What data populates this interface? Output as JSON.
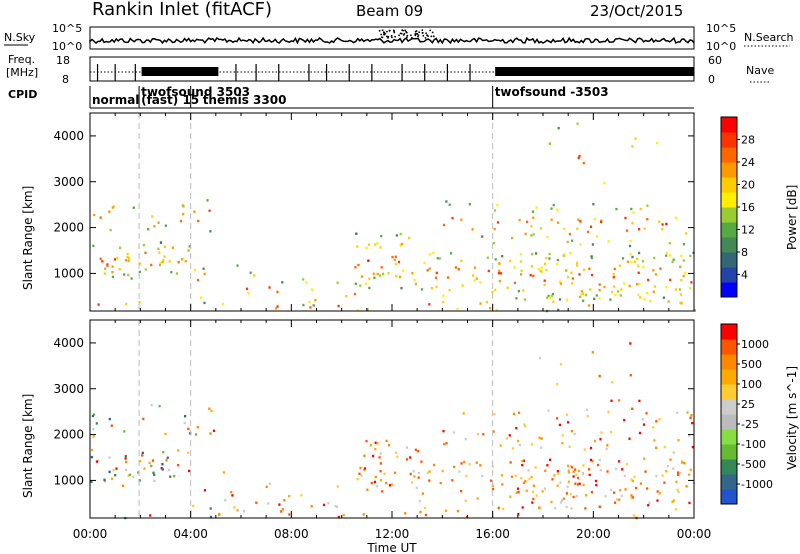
{
  "header": {
    "station": "Rankin Inlet (fitACF)",
    "beam": "Beam 09",
    "date": "23/Oct/2015"
  },
  "strip": {
    "nsky_label": "N.Sky",
    "nsky_ticks": [
      "10^5",
      "10^0"
    ],
    "nsearch_label": "N.Search",
    "nsearch_ticks": [
      "10^5",
      "10^0"
    ],
    "freq_label": "Freq.",
    "freq_unit": "[MHz]",
    "freq_ticks": [
      "18",
      "8"
    ],
    "nave_label": "Nave",
    "nave_ticks": [
      "60",
      "0"
    ],
    "cpid_label": "CPID",
    "modes": [
      {
        "label": "normal",
        "start_h": 0.0
      },
      {
        "label": "twofsound 3503",
        "start_h": 1.95
      },
      {
        "label": "(fast) 15",
        "start_h": 1.95
      },
      {
        "label": "themis 3300",
        "start_h": 4.0
      },
      {
        "label": "twofsound -3503",
        "start_h": 16.0
      }
    ]
  },
  "chart_data": [
    {
      "type": "heatmap",
      "name": "power",
      "ylabel": "Slant Range [km]",
      "xlabel": "",
      "ylim": [
        180,
        4500
      ],
      "yticks": [
        "1000",
        "2000",
        "3000",
        "4000"
      ],
      "colorbar": {
        "label": "Power [dB]",
        "ticks": [
          "28",
          "24",
          "20",
          "16",
          "12",
          "8",
          "4"
        ],
        "colors": [
          "#0000ff",
          "#2244aa",
          "#336677",
          "#448855",
          "#55aa44",
          "#99cc33",
          "#ffee00",
          "#ffcc00",
          "#ff9900",
          "#ff6600",
          "#ff3300",
          "#ff0000"
        ]
      },
      "mode_lines_h": [
        1.95,
        4.0,
        16.0
      ]
    },
    {
      "type": "heatmap",
      "name": "velocity",
      "ylabel": "Slant Range [km]",
      "xlabel": "Time UT",
      "ylim": [
        180,
        4500
      ],
      "yticks": [
        "1000",
        "2000",
        "3000",
        "4000"
      ],
      "colorbar": {
        "label": "Velocity [m s^-1]",
        "ticks": [
          "1000",
          "500",
          "100",
          "25",
          "-25",
          "-100",
          "-500",
          "-1000"
        ],
        "colors": [
          "#2255cc",
          "#336688",
          "#338855",
          "#66bb33",
          "#88dd44",
          "#bbbbbb",
          "#cccccc",
          "#ffcc33",
          "#ffaa00",
          "#ff8800",
          "#ff5500",
          "#ff0000"
        ]
      },
      "mode_lines_h": [
        1.95,
        4.0,
        16.0
      ]
    }
  ],
  "xaxis": {
    "ticks": [
      "00:00",
      "04:00",
      "08:00",
      "12:00",
      "16:00",
      "20:00",
      "00:00"
    ],
    "label": "Time UT"
  },
  "palette": {
    "grid_dash": "#bbbbbb",
    "axis": "#000000"
  }
}
